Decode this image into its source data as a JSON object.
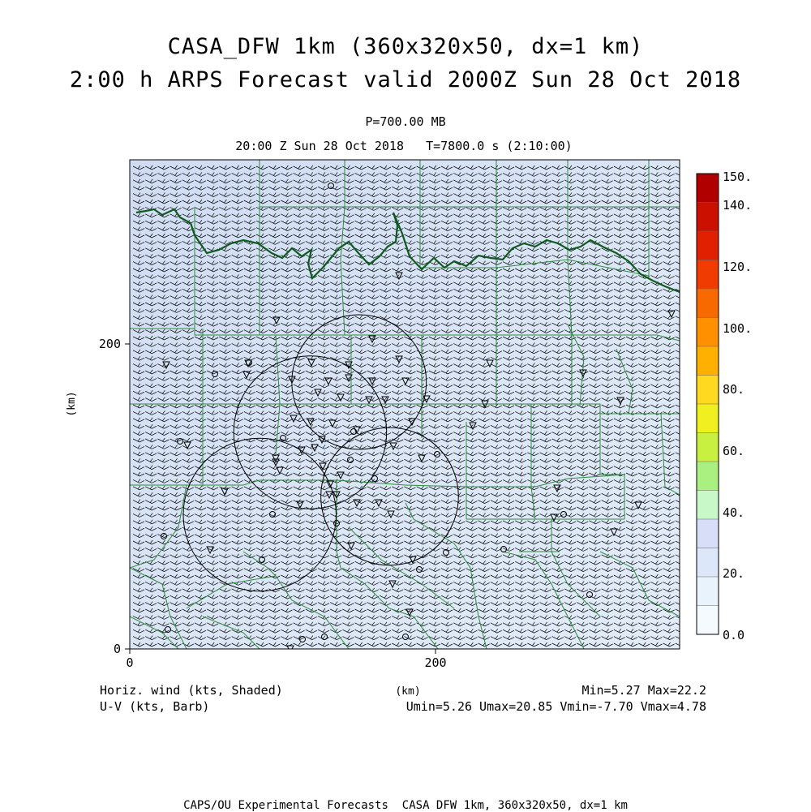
{
  "header": {
    "title_line1": "CASA_DFW 1km (360x320x50, dx=1 km)",
    "title_line2": "2:00 h ARPS Forecast valid 2000Z Sun 28 Oct 2018",
    "level": "P=700.00 MB",
    "time_line": "20:00 Z Sun 28 Oct 2018   T=7800.0 s (2:10:00)"
  },
  "axes": {
    "y_label": "(km)",
    "x_label": "(km)",
    "x_ticks": [
      "0",
      "200"
    ],
    "y_ticks": [
      "0",
      "200"
    ],
    "x_range_km": [
      0,
      360
    ],
    "y_range_km": [
      0,
      320
    ]
  },
  "colorbar": {
    "labels": [
      "150.",
      "140.",
      "120.",
      "100.",
      "80.",
      "60.",
      "40.",
      "20.",
      "0.0"
    ],
    "colors": [
      "#b00000",
      "#cc1000",
      "#e02000",
      "#f03c00",
      "#f86a00",
      "#ff9000",
      "#ffb000",
      "#ffd820",
      "#f0f020",
      "#c8f040",
      "#aaf080",
      "#c8f8c8",
      "#d8ddf8",
      "#dce8fa",
      "#e8f3fc",
      "#f4faff"
    ]
  },
  "footer": {
    "left_line1": "Horiz. wind (kts, Shaded)",
    "left_line2": "U-V (kts, Barb)",
    "right_line1": "Min=5.27 Max=22.2",
    "right_line2": "Umin=5.26 Umax=20.85 Vmin=-7.70 Vmax=4.78",
    "credit": "CAPS/OU Experimental Forecasts  CASA DFW 1km, 360x320x50, dx=1 km"
  },
  "radar_rings": [
    {
      "x_km": 150,
      "y_km": 175,
      "r_km": 44
    },
    {
      "x_km": 118,
      "y_km": 142,
      "r_km": 50
    },
    {
      "x_km": 170,
      "y_km": 100,
      "r_km": 45
    },
    {
      "x_km": 85,
      "y_km": 88,
      "r_km": 50
    }
  ],
  "colors": {
    "map_fill": "#d6e3f4",
    "county_lines": "#2e8b3e",
    "river": "#0f5a20",
    "barbs": "#000000"
  }
}
